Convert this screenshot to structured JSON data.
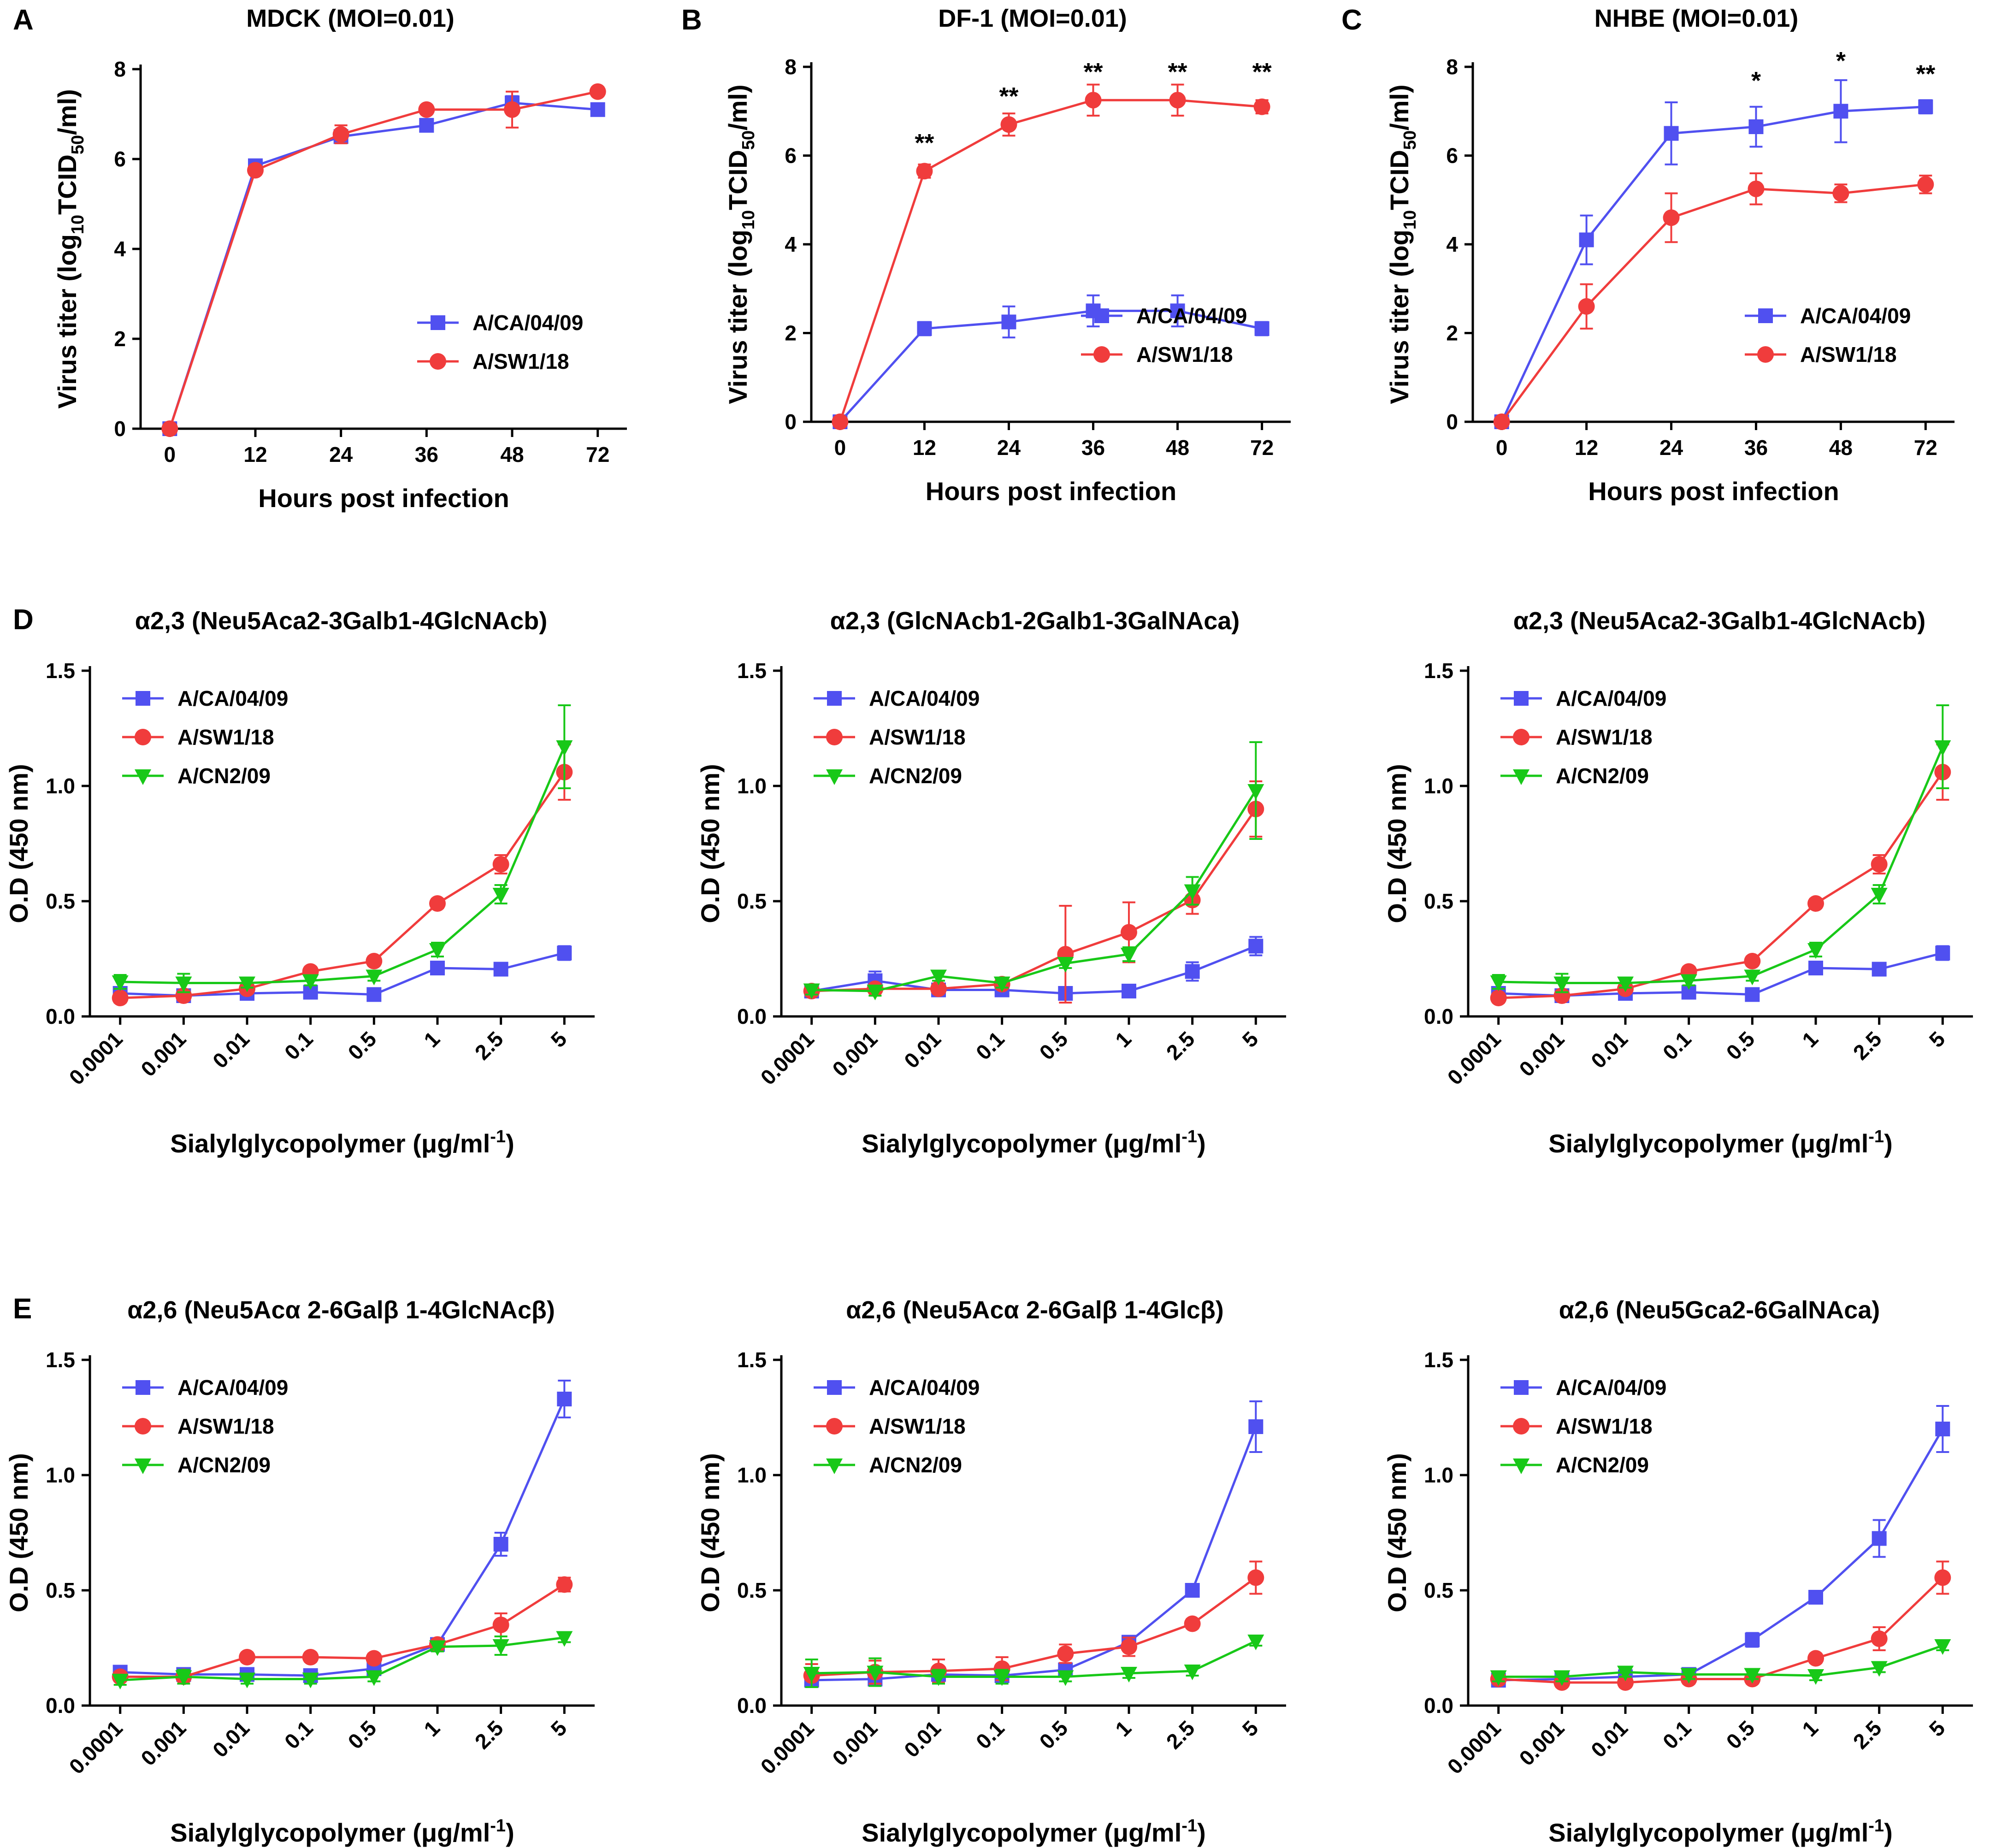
{
  "colors": {
    "blue": "#5050F0",
    "red": "#F03C3C",
    "green": "#18C818"
  },
  "chart_data": [
    {
      "id": "A",
      "panel_label": "A",
      "type": "line",
      "title": "MDCK (MOI=0.01)",
      "xlabel": "Hours post infection",
      "ylabel_parts": [
        "Virus titer (log",
        "10",
        "TCID",
        "50",
        "/ml)"
      ],
      "categories": [
        "0",
        "12",
        "24",
        "36",
        "48",
        "72"
      ],
      "ylim": [
        0,
        8
      ],
      "yticks": [
        0,
        2,
        4,
        6,
        8
      ],
      "legend": "bottom-right",
      "series": [
        {
          "name": "A/CA/04/09",
          "color": "blue",
          "marker": "square",
          "values": [
            0,
            5.85,
            6.5,
            6.75,
            7.25,
            7.1
          ],
          "errors": [
            0,
            0.1,
            0.1,
            0.1,
            0.15,
            0.1
          ]
        },
        {
          "name": "A/SW1/18",
          "color": "red",
          "marker": "circle",
          "values": [
            0,
            5.75,
            6.55,
            7.1,
            7.1,
            7.5
          ],
          "errors": [
            0,
            0.1,
            0.2,
            0.1,
            0.4,
            0.1
          ]
        }
      ],
      "significance": []
    },
    {
      "id": "B",
      "panel_label": "B",
      "type": "line",
      "title": "DF-1 (MOI=0.01)",
      "xlabel": "Hours post infection",
      "ylabel_parts": [
        "Virus titer (log",
        "10",
        "TCID",
        "50",
        "/ml)"
      ],
      "categories": [
        "0",
        "12",
        "24",
        "36",
        "48",
        "72"
      ],
      "ylim": [
        0,
        8
      ],
      "yticks": [
        0,
        2,
        4,
        6,
        8
      ],
      "legend": "bottom-right",
      "series": [
        {
          "name": "A/CA/04/09",
          "color": "blue",
          "marker": "square",
          "values": [
            0,
            2.1,
            2.25,
            2.5,
            2.5,
            2.1
          ],
          "errors": [
            0,
            0.15,
            0.35,
            0.35,
            0.35,
            0.15
          ]
        },
        {
          "name": "A/SW1/18",
          "color": "red",
          "marker": "circle",
          "values": [
            0,
            5.65,
            6.7,
            7.25,
            7.25,
            7.1
          ],
          "errors": [
            0,
            0.15,
            0.25,
            0.35,
            0.35,
            0.15
          ]
        }
      ],
      "significance": [
        {
          "index": 1,
          "label": "**",
          "y": 6.1
        },
        {
          "index": 2,
          "label": "**",
          "y": 7.15
        },
        {
          "index": 3,
          "label": "**",
          "y": 7.7
        },
        {
          "index": 4,
          "label": "**",
          "y": 7.7
        },
        {
          "index": 5,
          "label": "**",
          "y": 7.7
        }
      ]
    },
    {
      "id": "C",
      "panel_label": "C",
      "type": "line",
      "title": "NHBE (MOI=0.01)",
      "xlabel": "Hours post infection",
      "ylabel_parts": [
        "Virus titer (log",
        "10",
        "TCID",
        "50",
        "/ml)"
      ],
      "categories": [
        "0",
        "12",
        "24",
        "36",
        "48",
        "72"
      ],
      "ylim": [
        0,
        8
      ],
      "yticks": [
        0,
        2,
        4,
        6,
        8
      ],
      "legend": "bottom-right",
      "series": [
        {
          "name": "A/CA/04/09",
          "color": "blue",
          "marker": "square",
          "values": [
            0,
            4.1,
            6.5,
            6.65,
            7.0,
            7.1
          ],
          "errors": [
            0,
            0.55,
            0.7,
            0.45,
            0.7,
            0.15
          ]
        },
        {
          "name": "A/SW1/18",
          "color": "red",
          "marker": "circle",
          "values": [
            0,
            2.6,
            4.6,
            5.25,
            5.15,
            5.35
          ],
          "errors": [
            0,
            0.5,
            0.55,
            0.35,
            0.2,
            0.2
          ]
        }
      ],
      "significance": [
        {
          "index": 3,
          "label": "*",
          "y": 7.5
        },
        {
          "index": 4,
          "label": "*",
          "y": 7.95
        },
        {
          "index": 5,
          "label": "**",
          "y": 7.65
        }
      ]
    },
    {
      "id": "D1",
      "panel_label": "D",
      "type": "line",
      "title": "α2,3 (Neu5Aca2-3Galb1-4GlcNAcb)",
      "xlabel": "Sialylglycopolymer (μg/ml",
      "xlabel_sup": "-1",
      "xlabel_end": ")",
      "ylabel": "O.D (450 nm)",
      "categories": [
        "0.0001",
        "0.001",
        "0.01",
        "0.1",
        "0.5",
        "1",
        "2.5",
        "5"
      ],
      "ylim": [
        0,
        1.5
      ],
      "yticks": [
        "0.0",
        "0.5",
        "1.0",
        "1.5"
      ],
      "legend": "top-left",
      "series": [
        {
          "name": "A/CA/04/09",
          "color": "blue",
          "marker": "square",
          "values": [
            0.1,
            0.09,
            0.1,
            0.105,
            0.095,
            0.21,
            0.205,
            0.275
          ],
          "errors": [
            0.02,
            0.02,
            0.02,
            0.02,
            0.02,
            0.02,
            0.02,
            0.03
          ]
        },
        {
          "name": "A/SW1/18",
          "color": "red",
          "marker": "circle",
          "values": [
            0.08,
            0.09,
            0.12,
            0.195,
            0.24,
            0.49,
            0.66,
            1.06
          ],
          "errors": [
            0.02,
            0.02,
            0.02,
            0.02,
            0.02,
            0.02,
            0.04,
            0.12
          ]
        },
        {
          "name": "A/CN2/09",
          "color": "green",
          "marker": "triangle-down",
          "values": [
            0.15,
            0.145,
            0.145,
            0.155,
            0.175,
            0.29,
            0.53,
            1.17
          ],
          "errors": [
            0.03,
            0.04,
            0.02,
            0.02,
            0.02,
            0.03,
            0.04,
            0.18
          ]
        }
      ]
    },
    {
      "id": "D2",
      "panel_label": "",
      "type": "line",
      "title": "α2,3 (GlcNAcb1-2Galb1-3GalNAca)",
      "xlabel": "Sialylglycopolymer (μg/ml",
      "xlabel_sup": "-1",
      "xlabel_end": ")",
      "ylabel": "O.D (450 nm)",
      "categories": [
        "0.0001",
        "0.001",
        "0.01",
        "0.1",
        "0.5",
        "1",
        "2.5",
        "5"
      ],
      "ylim": [
        0,
        1.5
      ],
      "yticks": [
        "0.0",
        "0.5",
        "1.0",
        "1.5"
      ],
      "legend": "top-left",
      "series": [
        {
          "name": "A/CA/04/09",
          "color": "blue",
          "marker": "square",
          "values": [
            0.11,
            0.155,
            0.115,
            0.115,
            0.1,
            0.11,
            0.195,
            0.305
          ],
          "errors": [
            0.02,
            0.04,
            0.02,
            0.02,
            0.02,
            0.02,
            0.04,
            0.04
          ]
        },
        {
          "name": "A/SW1/18",
          "color": "red",
          "marker": "circle",
          "values": [
            0.11,
            0.12,
            0.12,
            0.14,
            0.27,
            0.365,
            0.505,
            0.9
          ],
          "errors": [
            0.02,
            0.02,
            0.02,
            0.02,
            0.21,
            0.13,
            0.06,
            0.12
          ]
        },
        {
          "name": "A/CN2/09",
          "color": "green",
          "marker": "triangle-down",
          "values": [
            0.115,
            0.11,
            0.175,
            0.145,
            0.23,
            0.27,
            0.545,
            0.98
          ],
          "errors": [
            0.02,
            0.02,
            0.02,
            0.02,
            0.02,
            0.03,
            0.06,
            0.21
          ]
        }
      ]
    },
    {
      "id": "D3",
      "panel_label": "",
      "type": "line",
      "title": "α2,3 (Neu5Aca2-3Galb1-4GlcNAcb)",
      "xlabel": "Sialylglycopolymer (μg/ml",
      "xlabel_sup": "-1",
      "xlabel_end": ")",
      "ylabel": "O.D (450 nm)",
      "categories": [
        "0.0001",
        "0.001",
        "0.01",
        "0.1",
        "0.5",
        "1",
        "2.5",
        "5"
      ],
      "ylim": [
        0,
        1.5
      ],
      "yticks": [
        "0.0",
        "0.5",
        "1.0",
        "1.5"
      ],
      "legend": "top-left",
      "series": [
        {
          "name": "A/CA/04/09",
          "color": "blue",
          "marker": "square",
          "values": [
            0.1,
            0.09,
            0.1,
            0.105,
            0.095,
            0.21,
            0.205,
            0.275
          ],
          "errors": [
            0.02,
            0.02,
            0.02,
            0.02,
            0.02,
            0.02,
            0.02,
            0.03
          ]
        },
        {
          "name": "A/SW1/18",
          "color": "red",
          "marker": "circle",
          "values": [
            0.08,
            0.09,
            0.12,
            0.195,
            0.24,
            0.49,
            0.66,
            1.06
          ],
          "errors": [
            0.02,
            0.02,
            0.02,
            0.02,
            0.02,
            0.02,
            0.04,
            0.12
          ]
        },
        {
          "name": "A/CN2/09",
          "color": "green",
          "marker": "triangle-down",
          "values": [
            0.15,
            0.145,
            0.145,
            0.155,
            0.175,
            0.29,
            0.53,
            1.17
          ],
          "errors": [
            0.03,
            0.04,
            0.02,
            0.02,
            0.02,
            0.03,
            0.04,
            0.18
          ]
        }
      ]
    },
    {
      "id": "E1",
      "panel_label": "E",
      "type": "line",
      "title": "α2,6 (Neu5Acα 2-6Galβ 1-4GlcNAcβ)",
      "xlabel": "Sialylglycopolymer (μg/ml",
      "xlabel_sup": "-1",
      "xlabel_end": ")",
      "ylabel": "O.D (450 nm)",
      "categories": [
        "0.0001",
        "0.001",
        "0.01",
        "0.1",
        "0.5",
        "1",
        "2.5",
        "5"
      ],
      "ylim": [
        0,
        1.5
      ],
      "yticks": [
        "0.0",
        "0.5",
        "1.0",
        "1.5"
      ],
      "legend": "top-left",
      "series": [
        {
          "name": "A/CA/04/09",
          "color": "blue",
          "marker": "square",
          "values": [
            0.145,
            0.135,
            0.135,
            0.13,
            0.16,
            0.265,
            0.7,
            1.33
          ],
          "errors": [
            0.02,
            0.02,
            0.02,
            0.02,
            0.02,
            0.02,
            0.05,
            0.08
          ]
        },
        {
          "name": "A/SW1/18",
          "color": "red",
          "marker": "circle",
          "values": [
            0.125,
            0.125,
            0.21,
            0.21,
            0.205,
            0.265,
            0.35,
            0.525
          ],
          "errors": [
            0.02,
            0.02,
            0.02,
            0.02,
            0.02,
            0.02,
            0.05,
            0.03
          ]
        },
        {
          "name": "A/CN2/09",
          "color": "green",
          "marker": "triangle-down",
          "values": [
            0.11,
            0.125,
            0.115,
            0.115,
            0.125,
            0.255,
            0.26,
            0.295
          ],
          "errors": [
            0.02,
            0.03,
            0.02,
            0.02,
            0.02,
            0.02,
            0.04,
            0.02
          ]
        }
      ]
    },
    {
      "id": "E2",
      "panel_label": "",
      "type": "line",
      "title": "α2,6 (Neu5Acα 2-6Galβ 1-4Glcβ)",
      "xlabel": "Sialylglycopolymer (μg/ml",
      "xlabel_sup": "-1",
      "xlabel_end": ")",
      "ylabel": "O.D (450 nm)",
      "categories": [
        "0.0001",
        "0.001",
        "0.01",
        "0.1",
        "0.5",
        "1",
        "2.5",
        "5"
      ],
      "ylim": [
        0,
        1.5
      ],
      "yticks": [
        "0.0",
        "0.5",
        "1.0",
        "1.5"
      ],
      "legend": "top-left",
      "series": [
        {
          "name": "A/CA/04/09",
          "color": "blue",
          "marker": "square",
          "values": [
            0.11,
            0.115,
            0.135,
            0.13,
            0.155,
            0.275,
            0.5,
            1.21
          ],
          "errors": [
            0.02,
            0.02,
            0.02,
            0.02,
            0.02,
            0.02,
            0.02,
            0.11
          ]
        },
        {
          "name": "A/SW1/18",
          "color": "red",
          "marker": "circle",
          "values": [
            0.13,
            0.145,
            0.15,
            0.16,
            0.225,
            0.255,
            0.355,
            0.555
          ],
          "errors": [
            0.05,
            0.05,
            0.05,
            0.05,
            0.04,
            0.04,
            0.02,
            0.07
          ]
        },
        {
          "name": "A/CN2/09",
          "color": "green",
          "marker": "triangle-down",
          "values": [
            0.14,
            0.145,
            0.125,
            0.125,
            0.125,
            0.14,
            0.15,
            0.28
          ],
          "errors": [
            0.06,
            0.06,
            0.03,
            0.03,
            0.02,
            0.02,
            0.02,
            0.02
          ]
        }
      ]
    },
    {
      "id": "E3",
      "panel_label": "",
      "type": "line",
      "title": "α2,6 (Neu5Gca2-6GalNAca)",
      "xlabel": "Sialylglycopolymer (μg/ml",
      "xlabel_sup": "-1",
      "xlabel_end": ")",
      "ylabel": "O.D (450 nm)",
      "categories": [
        "0.0001",
        "0.001",
        "0.01",
        "0.1",
        "0.5",
        "1",
        "2.5",
        "5"
      ],
      "ylim": [
        0,
        1.5
      ],
      "yticks": [
        "0.0",
        "0.5",
        "1.0",
        "1.5"
      ],
      "legend": "top-left",
      "series": [
        {
          "name": "A/CA/04/09",
          "color": "blue",
          "marker": "square",
          "values": [
            0.11,
            0.115,
            0.125,
            0.135,
            0.285,
            0.47,
            0.725,
            1.2
          ],
          "errors": [
            0.02,
            0.02,
            0.02,
            0.02,
            0.03,
            0.02,
            0.08,
            0.1
          ]
        },
        {
          "name": "A/SW1/18",
          "color": "red",
          "marker": "circle",
          "values": [
            0.115,
            0.1,
            0.1,
            0.115,
            0.115,
            0.205,
            0.29,
            0.555
          ],
          "errors": [
            0.02,
            0.02,
            0.02,
            0.02,
            0.02,
            0.02,
            0.05,
            0.07
          ]
        },
        {
          "name": "A/CN2/09",
          "color": "green",
          "marker": "triangle-down",
          "values": [
            0.125,
            0.125,
            0.145,
            0.135,
            0.135,
            0.13,
            0.165,
            0.26
          ],
          "errors": [
            0.02,
            0.02,
            0.02,
            0.02,
            0.02,
            0.02,
            0.02,
            0.02
          ]
        }
      ]
    }
  ]
}
